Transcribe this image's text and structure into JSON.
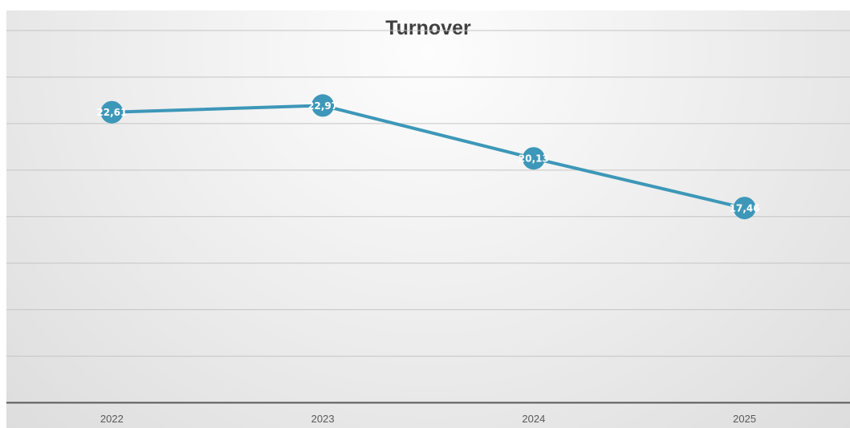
{
  "chart_data": {
    "type": "line",
    "title": "Turnover",
    "xlabel": "",
    "ylabel": "",
    "categories": [
      "2022",
      "2023",
      "2024",
      "2025"
    ],
    "series": [
      {
        "values": [
          22.61,
          22.97,
          20.13,
          17.46
        ],
        "labels": [
          "22,61",
          "22,97",
          "20,13",
          "17,46"
        ]
      }
    ],
    "ylim": [
      7,
      27
    ],
    "grid": true,
    "legend": "none",
    "line_color": "#3d97b8",
    "grid_color": "#c4c4c4",
    "axis_color": "#595959"
  }
}
